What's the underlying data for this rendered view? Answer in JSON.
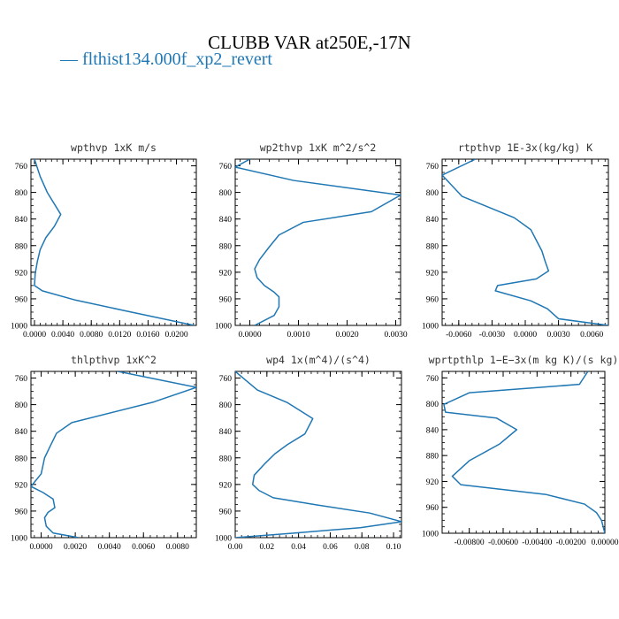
{
  "figure": {
    "title": "CLUBB VAR at250E,-17N",
    "legend": {
      "marker": "—",
      "label": "flthist134.000f_xp2_revert",
      "color": "#1f77b4"
    }
  },
  "chart_data": [
    {
      "type": "line",
      "title": "wpthvp  1xK m/s",
      "xlim": [
        -0.0005,
        0.0228
      ],
      "xticks": [
        0.0,
        0.004,
        0.008,
        0.012,
        0.016,
        0.02
      ],
      "xtick_labels": [
        "0.0000",
        "0.0040",
        "0.0080",
        "0.0120",
        "0.0160",
        "0.0200"
      ],
      "ylim": [
        1000,
        750
      ],
      "yticks": [
        760,
        800,
        840,
        880,
        920,
        960,
        1000
      ],
      "series": [
        {
          "x": [
            0.0,
            0.0008,
            0.0018,
            0.0037,
            0.0028,
            0.0016,
            0.0008,
            0.0004,
            0.0001,
            0.0,
            0.0011,
            0.0058,
            0.0128,
            0.0225
          ],
          "y": [
            750,
            776,
            800,
            833,
            851,
            868,
            886,
            904,
            922,
            940,
            948,
            962,
            978,
            1000
          ]
        }
      ]
    },
    {
      "type": "line",
      "title": "wp2thvp  1xK m^2/s^2",
      "xlim": [
        -0.0003,
        0.0031
      ],
      "xticks": [
        0.0,
        0.001,
        0.002,
        0.003
      ],
      "xtick_labels": [
        "0.0000",
        "0.0010",
        "0.0020",
        "0.0030"
      ],
      "ylim": [
        1000,
        750
      ],
      "yticks": [
        760,
        800,
        840,
        880,
        920,
        960,
        1000
      ],
      "series": [
        {
          "x": [
            0.0,
            -0.0003,
            0.0009,
            0.0031,
            0.0025,
            0.0011,
            0.0006,
            0.0004,
            0.0002,
            0.0001,
            0.00015,
            0.0003,
            0.0005,
            0.0006,
            0.0006,
            0.0005,
            0.0001
          ],
          "y": [
            750,
            762,
            782,
            804,
            829,
            845,
            864,
            882,
            901,
            915,
            928,
            940,
            950,
            957,
            972,
            985,
            1000
          ]
        }
      ]
    },
    {
      "type": "line",
      "title": "rtpthvp  1E-3x(kg/kg) K",
      "xlim": [
        -0.0075,
        0.0075
      ],
      "xticks": [
        -0.006,
        -0.003,
        0.0,
        0.003,
        0.006
      ],
      "xtick_labels": [
        "-0.0060",
        "-0.0030",
        "0.0000",
        "0.0030",
        "0.0060"
      ],
      "ylim": [
        1000,
        750
      ],
      "yticks": [
        760,
        800,
        840,
        880,
        920,
        960,
        1000
      ],
      "series": [
        {
          "x": [
            -0.0045,
            -0.0075,
            -0.0057,
            -0.001,
            0.0005,
            0.001,
            0.0015,
            0.0018,
            0.0021,
            0.001,
            -0.0025,
            -0.0027,
            0.0005,
            0.002,
            0.003,
            0.0075
          ],
          "y": [
            750,
            774,
            806,
            838,
            856,
            872,
            888,
            904,
            918,
            930,
            940,
            948,
            963,
            975,
            990,
            1000
          ]
        }
      ]
    },
    {
      "type": "line",
      "title": "thlpthvp  1xK^2",
      "xlim": [
        -0.0006,
        0.0091
      ],
      "xticks": [
        0.0,
        0.002,
        0.004,
        0.006,
        0.008
      ],
      "xtick_labels": [
        "0.0000",
        "0.0020",
        "0.0040",
        "0.0060",
        "0.0080"
      ],
      "ylim": [
        1000,
        750
      ],
      "yticks": [
        760,
        800,
        840,
        880,
        920,
        960,
        1000
      ],
      "series": [
        {
          "x": [
            0.0045,
            0.0091,
            0.0066,
            0.0018,
            0.0009,
            0.0005,
            0.0002,
            0.0,
            -0.0006,
            0.0001,
            0.0007,
            0.0008,
            0.0004,
            0.0002,
            0.0003,
            0.0007,
            0.0022
          ],
          "y": [
            750,
            774,
            796,
            827,
            843,
            864,
            880,
            904,
            923,
            932,
            942,
            955,
            962,
            970,
            983,
            993,
            1000
          ]
        }
      ]
    },
    {
      "type": "line",
      "title": "wp4  1x(m^4)/(s^4)",
      "xlim": [
        0.0,
        0.105
      ],
      "xticks": [
        0.0,
        0.02,
        0.04,
        0.06,
        0.08,
        0.1
      ],
      "xtick_labels": [
        "0.00",
        "0.02",
        "0.04",
        "0.06",
        "0.08",
        "0.10"
      ],
      "ylim": [
        1000,
        750
      ],
      "yticks": [
        760,
        800,
        840,
        880,
        920,
        960,
        1000
      ],
      "series": [
        {
          "x": [
            0.0,
            0.014,
            0.033,
            0.049,
            0.044,
            0.033,
            0.025,
            0.019,
            0.012,
            0.011,
            0.015,
            0.024,
            0.052,
            0.085,
            0.105,
            0.079,
            0.038,
            0.0
          ],
          "y": [
            750,
            778,
            797,
            821,
            844,
            860,
            874,
            888,
            906,
            920,
            929,
            940,
            951,
            963,
            976,
            985,
            993,
            1000
          ]
        }
      ]
    },
    {
      "type": "line",
      "title": "wprtpthlp  1−E−3x(m kg K)/(s kg)",
      "xlim": [
        -0.0096,
        0.0
      ],
      "xticks": [
        -0.008,
        -0.006,
        -0.004,
        -0.002,
        0.0
      ],
      "xtick_labels": [
        "-0.00800",
        "-0.00600",
        "-0.00400",
        "-0.00200",
        "0.00000"
      ],
      "ylim": [
        1000,
        750
      ],
      "yticks": [
        760,
        800,
        840,
        880,
        920,
        960,
        1000
      ],
      "series": [
        {
          "x": [
            -0.001,
            -0.0015,
            -0.008,
            -0.0095,
            -0.0094,
            -0.0064,
            -0.0052,
            -0.0062,
            -0.008,
            -0.009,
            -0.0085,
            -0.0035,
            -0.0012,
            -0.0005,
            -0.0002,
            0.0
          ],
          "y": [
            750,
            770,
            783,
            801,
            813,
            822,
            840,
            862,
            888,
            912,
            925,
            940,
            955,
            968,
            980,
            1000
          ]
        }
      ]
    }
  ]
}
